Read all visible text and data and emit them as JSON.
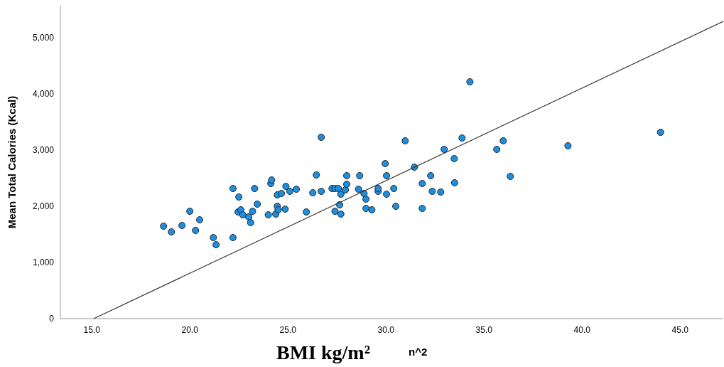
{
  "chart_data": {
    "type": "scatter",
    "xlabel": "BMI kg/m²",
    "ylabel": "Mean Total Calories (Kcal)",
    "annotations": [
      "n^2"
    ],
    "xlim": [
      13.4,
      47.2
    ],
    "ylim": [
      0,
      5570
    ],
    "xticks": [
      {
        "value": 15,
        "label": "15.0"
      },
      {
        "value": 20,
        "label": "20.0"
      },
      {
        "value": 25,
        "label": "25.0"
      },
      {
        "value": 30,
        "label": "30.0"
      },
      {
        "value": 35,
        "label": "35.0"
      },
      {
        "value": 40,
        "label": "40.0"
      },
      {
        "value": 45,
        "label": "45.0"
      }
    ],
    "yticks": [
      {
        "value": 0,
        "label": "0"
      },
      {
        "value": 1000,
        "label": "1,000"
      },
      {
        "value": 2000,
        "label": "2,000"
      },
      {
        "value": 3000,
        "label": "3,000"
      },
      {
        "value": 4000,
        "label": "4,000"
      },
      {
        "value": 5000,
        "label": "5,000"
      }
    ],
    "grid": false,
    "series": [
      {
        "color": "#1e8fe0",
        "marker": "circle",
        "x": [
          18.66,
          19.06,
          19.6,
          20.0,
          20.29,
          20.5,
          21.2,
          21.34,
          22.2,
          22.2,
          22.5,
          22.46,
          22.6,
          22.7,
          23.0,
          23.1,
          23.2,
          23.3,
          23.44,
          24.0,
          24.13,
          24.17,
          24.38,
          24.46,
          24.46,
          24.5,
          24.67,
          24.9,
          24.86,
          25.1,
          25.43,
          25.94,
          26.27,
          26.45,
          26.7,
          26.7,
          27.25,
          27.4,
          27.57,
          27.4,
          27.64,
          27.7,
          27.7,
          27.93,
          28.0,
          28.0,
          28.6,
          28.66,
          28.88,
          28.98,
          28.98,
          29.28,
          29.6,
          29.6,
          29.96,
          30.03,
          30.03,
          30.4,
          30.5,
          30.98,
          31.45,
          31.85,
          31.85,
          32.28,
          32.36,
          32.79,
          32.97,
          33.48,
          33.5,
          33.88,
          34.28,
          35.65,
          35.98,
          36.34,
          39.28,
          44.0
        ],
        "values": [
          1646,
          1544,
          1658,
          1911,
          1570,
          1759,
          1443,
          1316,
          2316,
          1443,
          2165,
          1899,
          1937,
          1848,
          1810,
          1709,
          1911,
          2316,
          2038,
          1848,
          2405,
          2468,
          1861,
          2000,
          2203,
          1937,
          2228,
          2354,
          1949,
          2266,
          2304,
          1899,
          2240,
          2557,
          3228,
          2266,
          2316,
          2316,
          2316,
          1911,
          2025,
          1861,
          2215,
          2291,
          2392,
          2544,
          2304,
          2544,
          2228,
          2127,
          1962,
          1937,
          2266,
          2316,
          2759,
          2544,
          2215,
          2316,
          2000,
          3165,
          2696,
          2405,
          1962,
          2544,
          2266,
          2253,
          3013,
          2848,
          2418,
          3215,
          4215,
          3013,
          3165,
          2532,
          3076,
          3316
        ]
      },
      {
        "type": "line",
        "color": "#333333",
        "line_style": "solid",
        "marker": "none",
        "x": [
          15.1,
          47.2
        ],
        "values": [
          0,
          5290
        ]
      }
    ]
  }
}
